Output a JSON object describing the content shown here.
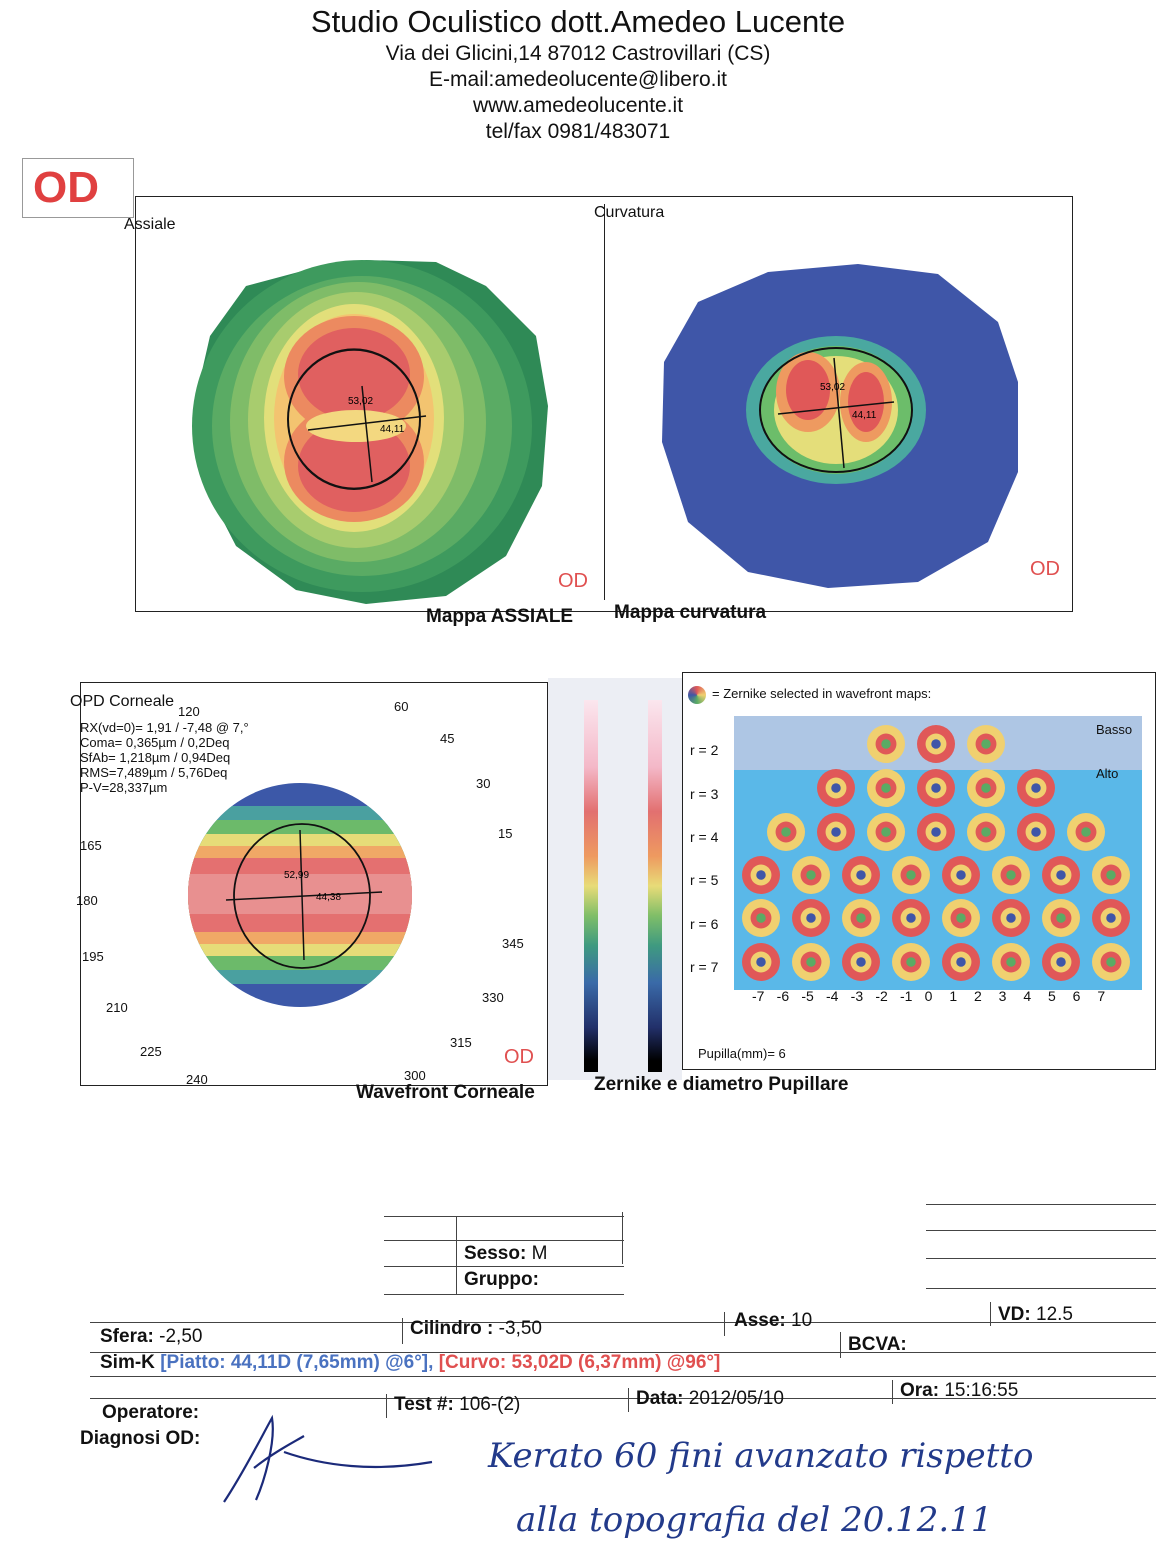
{
  "header": {
    "title": "Studio Oculistico dott.Amedeo Lucente",
    "address": "Via dei Glicini,14  87012 Castrovillari (CS)",
    "email": "E-mail:amedeolucente@libero.it",
    "website": "www.amedeolucente.it",
    "phone": "tel/fax 0981/483071"
  },
  "eye_label": "OD",
  "maps": {
    "axial": {
      "label": "Assiale",
      "eye": "OD",
      "center_value": "53,02",
      "flat_value": "44,11"
    },
    "curvature": {
      "label": "Curvatura",
      "eye": "OD",
      "center_value": "53,02",
      "flat_value": "44,11"
    },
    "caption_axial": "Mappa ASSIALE",
    "caption_curvature": "Mappa curvatura"
  },
  "wavefront": {
    "title": "OPD Corneale",
    "lines": [
      "RX(vd=0)= 1,91 / -7,48 @ 7,°",
      "Coma= 0,365µm / 0,2Deq",
      "SfAb= 1,218µm / 0,94Deq",
      "RMS=7,489µm / 5,76Deq",
      "P-V=28,337µm"
    ],
    "angles": [
      "120",
      "60",
      "45",
      "30",
      "15",
      "165",
      "180",
      "195",
      "210",
      "225",
      "240",
      "300",
      "315",
      "330",
      "345"
    ],
    "center_value": "52,99",
    "flat_value": "44,38",
    "eye": "OD",
    "caption": "Wavefront Corneale"
  },
  "zernike": {
    "legend": "= Zernike selected in wavefront maps:",
    "low_label": "Basso",
    "high_label": "Alto",
    "orders": [
      "r = 2",
      "r = 3",
      "r = 4",
      "r = 5",
      "r = 6",
      "r = 7"
    ],
    "axis": [
      "-7",
      "-6",
      "-5",
      "-4",
      "-3",
      "-2",
      "-1",
      "0",
      "1",
      "2",
      "3",
      "4",
      "5",
      "6",
      "7"
    ],
    "pupil": "Pupilla(mm)= 6",
    "caption": "Zernike e diametro Pupillare"
  },
  "patient": {
    "sex_label": "Sesso:",
    "sex_value": "M",
    "group_label": "Gruppo:",
    "group_value": ""
  },
  "refraction": {
    "sphere_label": "Sfera:",
    "sphere_value": "-2,50",
    "cyl_label": "Cilindro :",
    "cyl_value": "-3,50",
    "axis_label": "Asse:",
    "axis_value": "10",
    "vd_label": "VD:",
    "vd_value": "12.5",
    "simk_label": "Sim-K",
    "simk_flat": "[Piatto: 44,11D (7,65mm) @6°],",
    "simk_steep": "[Curvo: 53,02D (6,37mm) @96°]",
    "bcva_label": "BCVA:"
  },
  "exam": {
    "operator_label": "Operatore:",
    "test_label": "Test #:",
    "test_value": "106-(2)",
    "date_label": "Data:",
    "date_value": "2012/05/10",
    "time_label": "Ora:",
    "time_value": "15:16:55",
    "diagnosis_label": "Diagnosi OD:"
  },
  "handwriting": {
    "line1": "Kerato 60  fini avanzato rispetto",
    "line2": "alla topografia del 20.12.11"
  }
}
